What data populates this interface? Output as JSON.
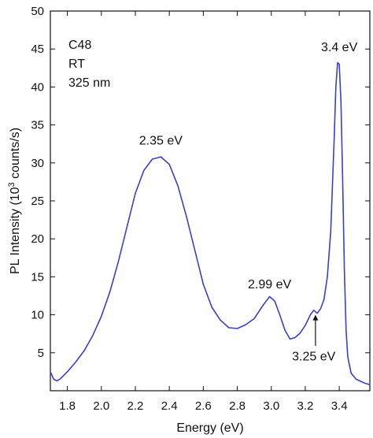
{
  "chart_data": {
    "type": "line",
    "xlabel": "Energy (eV)",
    "ylabel_parts": {
      "pre": "PL Intensity (10",
      "sup": "3",
      "post": " counts/s)"
    },
    "xlim": [
      1.7,
      3.58
    ],
    "ylim": [
      0,
      50
    ],
    "x_ticks": [
      1.8,
      2.0,
      2.2,
      2.4,
      2.6,
      2.8,
      3.0,
      3.2,
      3.4
    ],
    "x_tick_labels": [
      "1.8",
      "2.0",
      "2.2",
      "2.4",
      "2.6",
      "2.8",
      "3.0",
      "3.2",
      "3.4"
    ],
    "y_ticks": [
      5,
      10,
      15,
      20,
      25,
      30,
      35,
      40,
      45,
      50
    ],
    "y_tick_labels": [
      "5",
      "10",
      "15",
      "20",
      "25",
      "30",
      "35",
      "40",
      "45",
      "50"
    ],
    "sample_info": [
      "C48",
      "RT",
      "325 nm"
    ],
    "line_color": "#3a3fd0",
    "series": [
      {
        "x": [
          1.7,
          1.72,
          1.74,
          1.76,
          1.8,
          1.85,
          1.9,
          1.95,
          2.0,
          2.05,
          2.1,
          2.15,
          2.2,
          2.25,
          2.3,
          2.35,
          2.4,
          2.45,
          2.5,
          2.55,
          2.6,
          2.65,
          2.7,
          2.75,
          2.8,
          2.85,
          2.9,
          2.95,
          2.99,
          3.02,
          3.05,
          3.08,
          3.11,
          3.14,
          3.17,
          3.2,
          3.23,
          3.25,
          3.27,
          3.29,
          3.31,
          3.33,
          3.35,
          3.37,
          3.38,
          3.39,
          3.4,
          3.41,
          3.42,
          3.43,
          3.44,
          3.45,
          3.47,
          3.5,
          3.55,
          3.58
        ],
        "y": [
          2.5,
          1.5,
          1.3,
          1.6,
          2.5,
          3.8,
          5.3,
          7.3,
          9.8,
          13.0,
          17.0,
          21.5,
          26.0,
          29.0,
          30.5,
          30.8,
          29.8,
          27.0,
          23.0,
          18.5,
          14.0,
          11.0,
          9.3,
          8.3,
          8.2,
          8.7,
          9.5,
          11.2,
          12.4,
          11.8,
          10.0,
          8.0,
          6.8,
          7.0,
          7.6,
          8.6,
          10.0,
          10.6,
          10.2,
          10.8,
          12.0,
          15.0,
          21.0,
          33.0,
          40.0,
          43.2,
          43.0,
          38.0,
          28.0,
          16.0,
          8.0,
          4.5,
          2.3,
          1.5,
          1.0,
          0.8
        ]
      }
    ],
    "annotations": [
      {
        "label": "2.35 eV",
        "x": 2.35,
        "y": 32.4
      },
      {
        "label": "2.99 eV",
        "x": 2.99,
        "y": 13.5
      },
      {
        "label": "3.25 eV",
        "x": 3.25,
        "y": 4.0
      },
      {
        "label": "3.4 eV",
        "x": 3.4,
        "y": 44.7
      }
    ]
  }
}
